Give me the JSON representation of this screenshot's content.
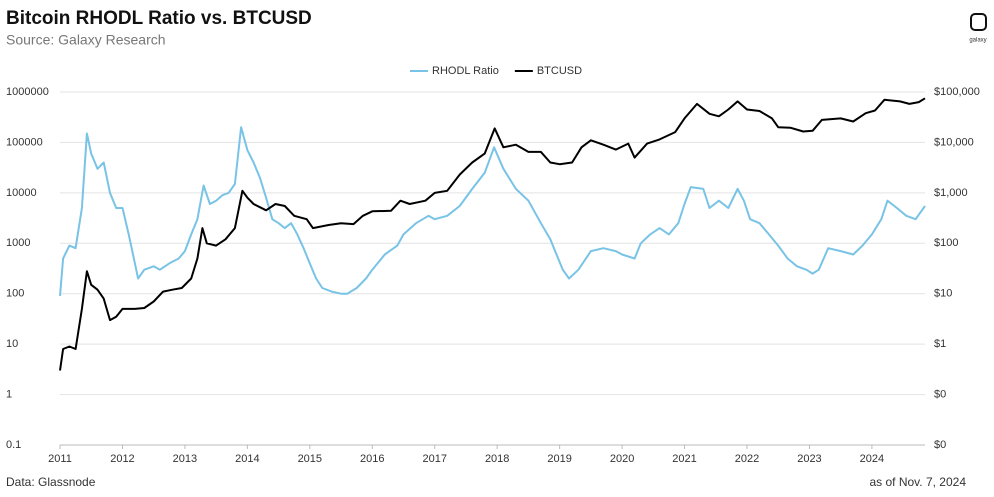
{
  "chart_data": {
    "type": "line",
    "title": "Bitcoin RHODL Ratio vs. BTCUSD",
    "subtitle": "Source: Galaxy Research",
    "source": "Data: Glassnode",
    "note": "as of Nov. 7, 2024",
    "logo": "galaxy",
    "log_scale": true,
    "grid": true,
    "legend": "top",
    "xlim": [
      2011,
      2024.85
    ],
    "xticks": [
      2011,
      2012,
      2013,
      2014,
      2015,
      2016,
      2017,
      2018,
      2019,
      2020,
      2021,
      2022,
      2023,
      2024
    ],
    "ylim": [
      0.1,
      1000000
    ],
    "yticks": [
      0.1,
      1,
      10,
      100,
      1000,
      10000,
      100000,
      1000000
    ],
    "y2lim": [
      0.01,
      100000
    ],
    "y2ticks": [
      {
        "value": 0.01,
        "label": "$0"
      },
      {
        "value": 0.1,
        "label": "$0"
      },
      {
        "value": 1,
        "label": "$1"
      },
      {
        "value": 10,
        "label": "$10"
      },
      {
        "value": 100,
        "label": "$100"
      },
      {
        "value": 1000,
        "label": "$1,000"
      },
      {
        "value": 10000,
        "label": "$10,000"
      },
      {
        "value": 100000,
        "label": "$100,000"
      }
    ],
    "series": [
      {
        "name": "RHODL Ratio",
        "color": "#79c3e6",
        "x": [
          2011.0,
          2011.05,
          2011.15,
          2011.25,
          2011.35,
          2011.43,
          2011.5,
          2011.6,
          2011.7,
          2011.8,
          2011.9,
          2012.0,
          2012.1,
          2012.2,
          2012.25,
          2012.35,
          2012.5,
          2012.6,
          2012.75,
          2012.9,
          2013.0,
          2013.1,
          2013.2,
          2013.3,
          2013.4,
          2013.5,
          2013.6,
          2013.7,
          2013.8,
          2013.9,
          2014.0,
          2014.1,
          2014.2,
          2014.3,
          2014.4,
          2014.5,
          2014.6,
          2014.7,
          2014.8,
          2014.9,
          2015.0,
          2015.1,
          2015.2,
          2015.35,
          2015.5,
          2015.6,
          2015.75,
          2015.9,
          2016.0,
          2016.2,
          2016.4,
          2016.5,
          2016.7,
          2016.9,
          2017.0,
          2017.2,
          2017.4,
          2017.6,
          2017.8,
          2017.95,
          2018.1,
          2018.3,
          2018.5,
          2018.7,
          2018.85,
          2018.95,
          2019.05,
          2019.15,
          2019.3,
          2019.5,
          2019.7,
          2019.9,
          2020.0,
          2020.2,
          2020.3,
          2020.45,
          2020.6,
          2020.75,
          2020.9,
          2021.0,
          2021.1,
          2021.3,
          2021.4,
          2021.55,
          2021.7,
          2021.85,
          2021.95,
          2022.05,
          2022.2,
          2022.35,
          2022.5,
          2022.65,
          2022.8,
          2022.95,
          2023.05,
          2023.15,
          2023.3,
          2023.5,
          2023.7,
          2023.85,
          2024.0,
          2024.15,
          2024.25,
          2024.4,
          2024.55,
          2024.7,
          2024.85
        ],
        "values": [
          90,
          500,
          900,
          800,
          5000,
          150000,
          60000,
          30000,
          40000,
          10000,
          5000,
          5000,
          1500,
          400,
          200,
          300,
          350,
          300,
          400,
          500,
          700,
          1500,
          3000,
          14000,
          6000,
          7000,
          9000,
          10000,
          15000,
          200000,
          70000,
          40000,
          20000,
          8000,
          3000,
          2500,
          2000,
          2500,
          1500,
          800,
          400,
          200,
          130,
          110,
          100,
          100,
          130,
          200,
          300,
          600,
          900,
          1500,
          2500,
          3500,
          3000,
          3500,
          5500,
          12000,
          25000,
          80000,
          30000,
          12000,
          7000,
          2500,
          1200,
          600,
          300,
          200,
          300,
          700,
          800,
          700,
          600,
          500,
          1000,
          1500,
          2000,
          1500,
          2500,
          6000,
          13000,
          12000,
          5000,
          7000,
          5000,
          12000,
          7000,
          3000,
          2500,
          1500,
          900,
          500,
          350,
          300,
          250,
          300,
          800,
          700,
          600,
          900,
          1500,
          3000,
          7000,
          5000,
          3500,
          3000,
          5500
        ]
      },
      {
        "name": "BTCUSD",
        "color": "#000000",
        "axis": "y2",
        "x": [
          2011.0,
          2011.05,
          2011.15,
          2011.25,
          2011.35,
          2011.43,
          2011.5,
          2011.6,
          2011.7,
          2011.8,
          2011.9,
          2012.0,
          2012.1,
          2012.2,
          2012.35,
          2012.5,
          2012.65,
          2012.8,
          2012.95,
          2013.1,
          2013.2,
          2013.28,
          2013.35,
          2013.5,
          2013.65,
          2013.8,
          2013.92,
          2014.0,
          2014.1,
          2014.3,
          2014.45,
          2014.6,
          2014.75,
          2014.95,
          2015.05,
          2015.3,
          2015.5,
          2015.7,
          2015.85,
          2016.0,
          2016.3,
          2016.45,
          2016.6,
          2016.85,
          2017.0,
          2017.2,
          2017.4,
          2017.6,
          2017.8,
          2017.96,
          2018.1,
          2018.3,
          2018.5,
          2018.7,
          2018.85,
          2019.0,
          2019.2,
          2019.35,
          2019.5,
          2019.7,
          2019.9,
          2020.1,
          2020.2,
          2020.4,
          2020.6,
          2020.85,
          2021.0,
          2021.2,
          2021.4,
          2021.55,
          2021.7,
          2021.85,
          2022.0,
          2022.2,
          2022.4,
          2022.5,
          2022.7,
          2022.9,
          2023.05,
          2023.2,
          2023.5,
          2023.7,
          2023.9,
          2024.05,
          2024.2,
          2024.45,
          2024.6,
          2024.75,
          2024.85
        ],
        "values": [
          0.3,
          0.8,
          0.9,
          0.8,
          5,
          28,
          15,
          12,
          8,
          3,
          3.5,
          5,
          5,
          5,
          5.2,
          7,
          11,
          12,
          13,
          20,
          50,
          200,
          100,
          90,
          120,
          200,
          1100,
          800,
          600,
          450,
          600,
          550,
          350,
          300,
          200,
          230,
          250,
          240,
          350,
          430,
          440,
          700,
          600,
          700,
          1000,
          1100,
          2300,
          4000,
          6000,
          19000,
          8000,
          9000,
          6500,
          6500,
          4000,
          3700,
          4000,
          8000,
          11000,
          9000,
          7200,
          9500,
          5000,
          9500,
          11500,
          16000,
          30000,
          58000,
          37000,
          33000,
          45000,
          65000,
          45000,
          42000,
          30000,
          20000,
          19500,
          16500,
          17000,
          28000,
          30000,
          26000,
          38000,
          43000,
          70000,
          65000,
          58000,
          63000,
          75000
        ]
      }
    ]
  }
}
